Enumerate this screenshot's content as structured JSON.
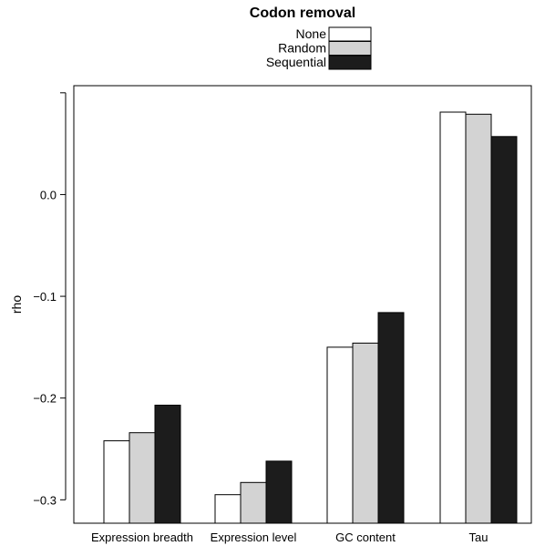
{
  "chart_data": {
    "type": "bar",
    "title": "",
    "xlabel": "",
    "ylabel": "rho",
    "ylim": [
      -0.323,
      0.107
    ],
    "yticks": [
      -0.3,
      -0.2,
      -0.1,
      0.0
    ],
    "ytick_labels": [
      "−0.3",
      "−0.2",
      "−0.1",
      "0.0"
    ],
    "categories": [
      "Expression breadth",
      "Expression level",
      "GC content",
      "Tau"
    ],
    "series": [
      {
        "name": "None",
        "color": "#ffffff",
        "values": [
          -0.242,
          -0.295,
          -0.15,
          0.081
        ]
      },
      {
        "name": "Random",
        "color": "#d3d3d3",
        "values": [
          -0.234,
          -0.283,
          -0.146,
          0.079
        ]
      },
      {
        "name": "Sequential",
        "color": "#1c1c1c",
        "values": [
          -0.207,
          -0.262,
          -0.116,
          0.057
        ]
      }
    ],
    "legend": {
      "title": "Codon removal",
      "position": "top-center"
    },
    "grid": false,
    "baseline": -0.323
  }
}
